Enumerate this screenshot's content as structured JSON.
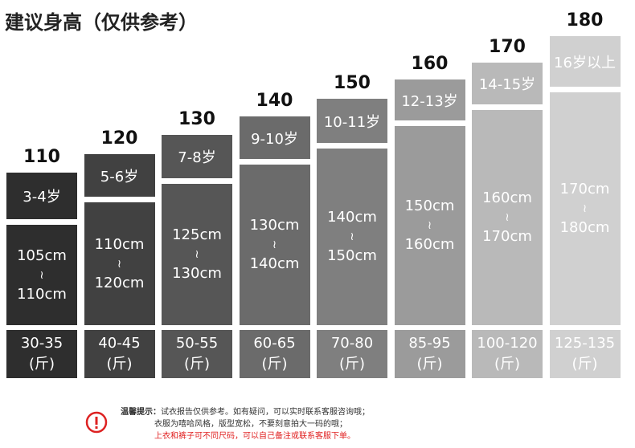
{
  "title": "建议身高（仅供参考）",
  "columns": [
    {
      "size": "110",
      "age": "3-4岁",
      "height_from": "105cm",
      "height_sep": "≀",
      "height_to": "110cm",
      "weight": "30-35",
      "unit": "(斤)"
    },
    {
      "size": "120",
      "age": "5-6岁",
      "height_from": "110cm",
      "height_sep": "≀",
      "height_to": "120cm",
      "weight": "40-45",
      "unit": "(斤)"
    },
    {
      "size": "130",
      "age": "7-8岁",
      "height_from": "125cm",
      "height_sep": "≀",
      "height_to": "130cm",
      "weight": "50-55",
      "unit": "(斤)"
    },
    {
      "size": "140",
      "age": "9-10岁",
      "height_from": "130cm",
      "height_sep": "≀",
      "height_to": "140cm",
      "weight": "60-65",
      "unit": "(斤)"
    },
    {
      "size": "150",
      "age": "10-11岁",
      "height_from": "140cm",
      "height_sep": "≀",
      "height_to": "150cm",
      "weight": "70-80",
      "unit": "(斤)"
    },
    {
      "size": "160",
      "age": "12-13岁",
      "height_from": "150cm",
      "height_sep": "≀",
      "height_to": "160cm",
      "weight": "85-95",
      "unit": "(斤)"
    },
    {
      "size": "170",
      "age": "14-15岁",
      "height_from": "160cm",
      "height_sep": "≀",
      "height_to": "170cm",
      "weight": "100-120",
      "unit": "(斤)"
    },
    {
      "size": "180",
      "age": "16岁以上",
      "height_from": "170cm",
      "height_sep": "≀",
      "height_to": "180cm",
      "weight": "125-135",
      "unit": "(斤)"
    }
  ],
  "notice": {
    "label": "温馨提示：",
    "lines": [
      "试衣报告仅供参考。如有疑问，可以实时联系客服咨询哦；",
      "衣服为嘻哈风格，版型宽松，不要刻意拍大一码的哦；",
      "上衣和裤子可不同尺码，可以自己备注或联系客服下单。"
    ]
  }
}
